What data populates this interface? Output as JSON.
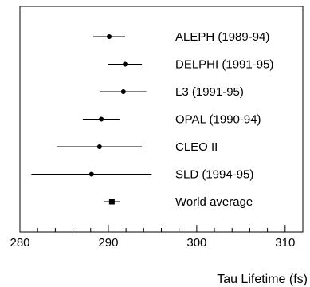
{
  "chart_data": {
    "type": "scatter",
    "title": "",
    "xlabel": "Tau Lifetime (fs)",
    "ylabel": "",
    "xlim": [
      280,
      312
    ],
    "x_ticks": [
      280,
      290,
      300,
      310
    ],
    "grid": false,
    "legend": "none",
    "series": [
      {
        "points": [
          {
            "label": "ALEPH (1989-94)",
            "x": 290.1,
            "err_low": 288.3,
            "err_high": 291.9,
            "marker": "circle"
          },
          {
            "label": "DELPHI (1991-95)",
            "x": 291.9,
            "err_low": 290.0,
            "err_high": 293.8,
            "marker": "circle"
          },
          {
            "label": "L3 (1991-95)",
            "x": 291.7,
            "err_low": 289.1,
            "err_high": 294.3,
            "marker": "circle"
          },
          {
            "label": "OPAL (1990-94)",
            "x": 289.2,
            "err_low": 287.1,
            "err_high": 291.3,
            "marker": "circle"
          },
          {
            "label": "CLEO II",
            "x": 289.0,
            "err_low": 284.2,
            "err_high": 293.8,
            "marker": "circle"
          },
          {
            "label": "SLD (1994-95)",
            "x": 288.1,
            "err_low": 281.3,
            "err_high": 294.9,
            "marker": "circle"
          },
          {
            "label": "World average",
            "x": 290.4,
            "err_low": 289.5,
            "err_high": 291.3,
            "marker": "square"
          }
        ]
      }
    ]
  }
}
